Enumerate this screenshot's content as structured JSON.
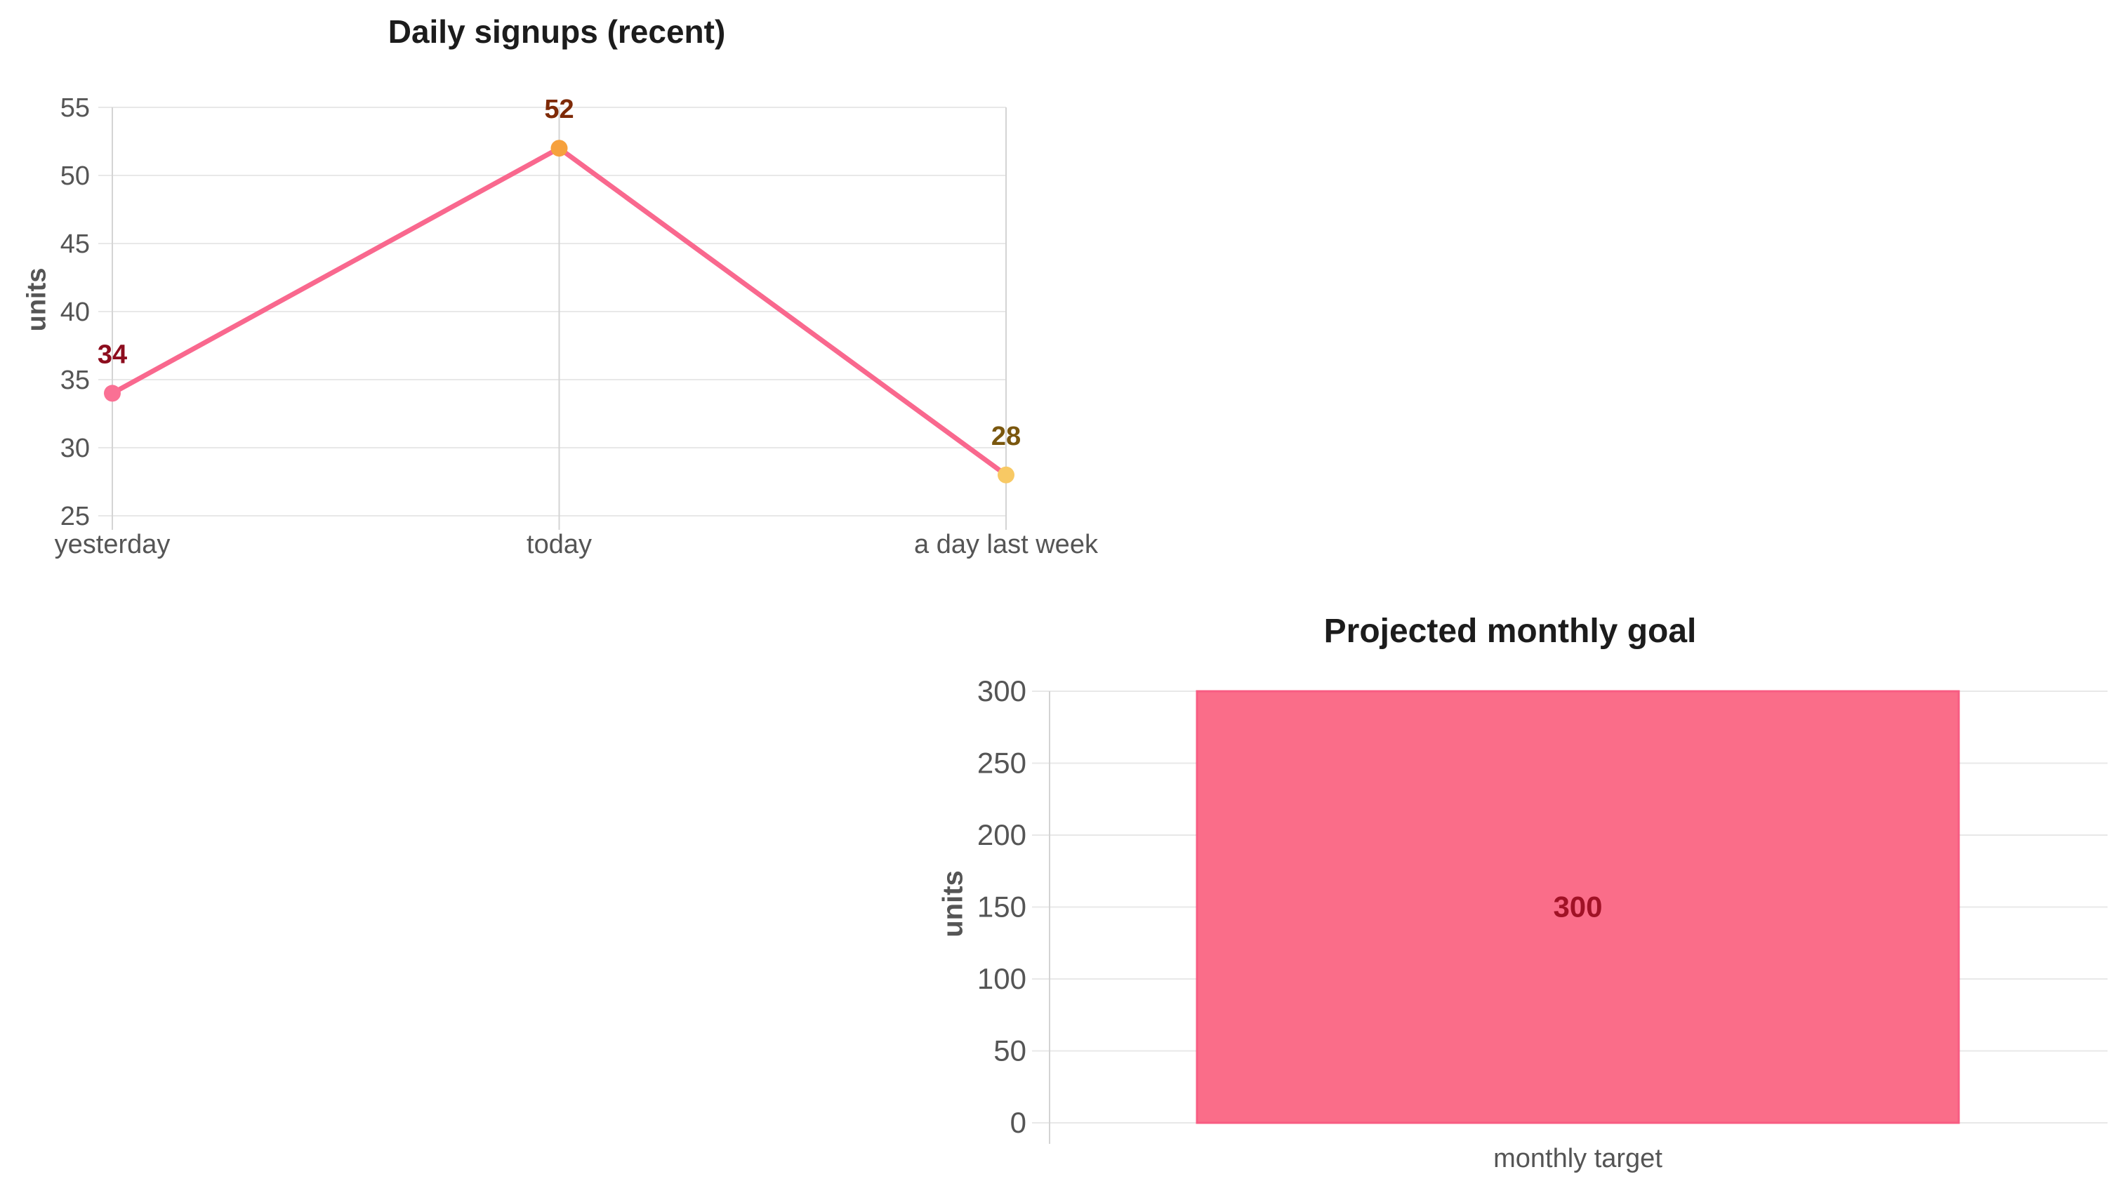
{
  "page": {
    "background": "#ffffff",
    "title_color": "#1c1c1c",
    "axis_text_color": "#555555",
    "grid_color": "#e8e8e8",
    "axis_line_color": "#d4d4d4"
  },
  "chart_data": [
    {
      "type": "line",
      "title": "Daily signups (recent)",
      "ylabel": "units",
      "xlabel": "",
      "categories": [
        "yesterday",
        "today",
        "a day last week"
      ],
      "values": [
        34,
        52,
        28
      ],
      "value_labels": [
        "34",
        "52",
        "28"
      ],
      "ylim": [
        25,
        55
      ],
      "yticks": [
        25,
        30,
        35,
        40,
        45,
        50,
        55
      ],
      "grid": true,
      "legend": "none",
      "line_color": "#f9688e",
      "point_colors": [
        "#fa7094",
        "#f6a13d",
        "#f8c964"
      ],
      "value_label_colors": [
        "#8d0d1e",
        "#7e2a07",
        "#7a570e"
      ]
    },
    {
      "type": "bar",
      "title": "Projected monthly goal",
      "ylabel": "units",
      "xlabel": "",
      "categories": [
        "monthly target"
      ],
      "values": [
        300
      ],
      "value_labels": [
        "300"
      ],
      "ylim": [
        0,
        300
      ],
      "yticks": [
        0,
        50,
        100,
        150,
        200,
        250,
        300
      ],
      "grid": true,
      "legend": "none",
      "bar_color": "#fa6d89",
      "bar_border_color": "#f85c82",
      "value_label_colors": [
        "#a01226"
      ]
    }
  ]
}
